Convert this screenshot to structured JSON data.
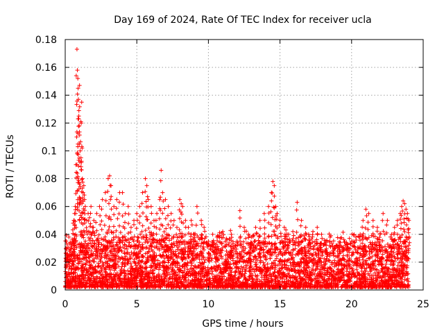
{
  "chart_data": {
    "type": "scatter",
    "title": "Day 169 of 2024, Rate Of TEC Index for receiver ucla",
    "xlabel": "GPS time / hours",
    "ylabel": "ROTI / TECUs",
    "xlim": [
      0,
      25
    ],
    "ylim": [
      0,
      0.18
    ],
    "grid": true,
    "xticks": [
      0,
      5,
      10,
      15,
      20,
      25
    ],
    "xtick_labels": [
      "0",
      "5",
      "10",
      "15",
      "20",
      "25"
    ],
    "yticks": [
      0,
      0.02,
      0.04,
      0.06,
      0.08,
      0.1,
      0.12,
      0.14,
      0.16,
      0.18
    ],
    "ytick_labels": [
      "0",
      "0.02",
      "0.04",
      "0.06",
      "0.08",
      "0.1",
      "0.12",
      "0.14",
      "0.16",
      "0.18"
    ],
    "marker": "plus",
    "color": "#ff0000",
    "series": [
      {
        "name": "ROTI",
        "x": [
          0.05,
          0.1,
          0.2,
          0.3,
          0.4,
          0.5,
          0.55,
          0.6,
          0.65,
          0.7,
          0.75,
          0.8,
          0.82,
          0.85,
          0.88,
          0.9,
          0.92,
          0.95,
          0.98,
          1.0,
          1.05,
          1.1,
          1.12,
          1.15,
          1.18,
          1.2,
          1.25,
          1.3,
          1.35,
          1.4,
          1.5,
          1.6,
          1.7,
          1.8,
          1.9,
          2.0,
          2.2,
          2.4,
          2.6,
          2.8,
          3.0,
          3.1,
          3.2,
          3.4,
          3.6,
          3.8,
          4.0,
          4.2,
          4.4,
          4.6,
          4.8,
          5.0,
          5.2,
          5.4,
          5.6,
          5.7,
          5.8,
          6.0,
          6.2,
          6.4,
          6.6,
          6.7,
          6.8,
          7.0,
          7.2,
          7.4,
          7.6,
          7.8,
          8.0,
          8.1,
          8.2,
          8.4,
          8.6,
          8.8,
          9.0,
          9.2,
          9.5,
          9.7,
          10.0,
          10.3,
          10.6,
          11.0,
          11.3,
          11.6,
          12.0,
          12.2,
          12.5,
          12.8,
          13.0,
          13.3,
          13.6,
          13.9,
          14.2,
          14.4,
          14.5,
          14.6,
          14.7,
          14.8,
          15.0,
          15.3,
          15.6,
          15.9,
          16.2,
          16.5,
          16.8,
          17.0,
          17.3,
          17.6,
          17.9,
          18.2,
          18.5,
          18.8,
          19.1,
          19.4,
          19.7,
          20.0,
          20.3,
          20.6,
          20.8,
          21.0,
          21.2,
          21.5,
          21.8,
          22.0,
          22.2,
          22.5,
          22.8,
          23.0,
          23.2,
          23.4,
          23.5,
          23.6,
          23.7,
          23.8,
          23.9,
          24.0
        ],
        "y": [
          0.03,
          0.025,
          0.022,
          0.028,
          0.03,
          0.035,
          0.048,
          0.05,
          0.055,
          0.06,
          0.09,
          0.11,
          0.173,
          0.158,
          0.152,
          0.145,
          0.137,
          0.125,
          0.118,
          0.147,
          0.1,
          0.095,
          0.12,
          0.135,
          0.102,
          0.08,
          0.07,
          0.075,
          0.065,
          0.06,
          0.05,
          0.055,
          0.052,
          0.06,
          0.045,
          0.05,
          0.055,
          0.06,
          0.065,
          0.07,
          0.08,
          0.082,
          0.075,
          0.06,
          0.065,
          0.07,
          0.07,
          0.055,
          0.06,
          0.045,
          0.05,
          0.055,
          0.06,
          0.07,
          0.08,
          0.075,
          0.065,
          0.06,
          0.05,
          0.055,
          0.065,
          0.086,
          0.07,
          0.065,
          0.06,
          0.055,
          0.05,
          0.045,
          0.065,
          0.062,
          0.06,
          0.05,
          0.045,
          0.05,
          0.04,
          0.06,
          0.05,
          0.045,
          0.035,
          0.04,
          0.038,
          0.042,
          0.036,
          0.04,
          0.035,
          0.057,
          0.045,
          0.04,
          0.038,
          0.045,
          0.05,
          0.055,
          0.06,
          0.07,
          0.078,
          0.075,
          0.06,
          0.055,
          0.05,
          0.045,
          0.04,
          0.042,
          0.063,
          0.05,
          0.045,
          0.04,
          0.042,
          0.045,
          0.04,
          0.035,
          0.038,
          0.03,
          0.032,
          0.028,
          0.03,
          0.035,
          0.038,
          0.04,
          0.05,
          0.058,
          0.055,
          0.05,
          0.045,
          0.04,
          0.055,
          0.05,
          0.04,
          0.045,
          0.05,
          0.055,
          0.06,
          0.064,
          0.062,
          0.058,
          0.055,
          0.05
        ]
      }
    ],
    "background_noise": {
      "description_free": true,
      "x_start": 0,
      "x_end": 24,
      "y_min": 0.002,
      "y_typical_max": 0.03,
      "count": 4200
    }
  }
}
